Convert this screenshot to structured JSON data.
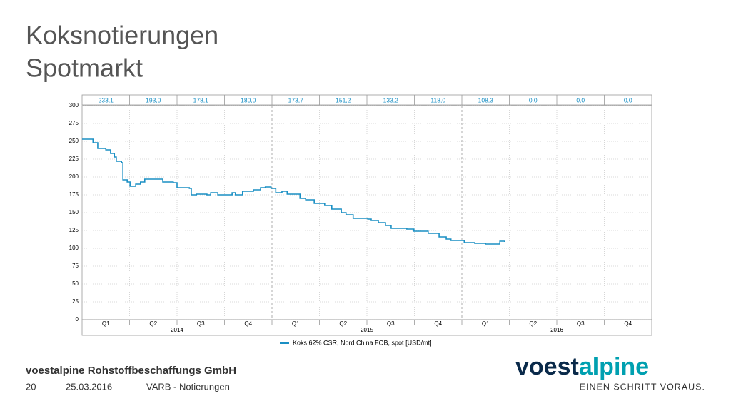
{
  "title_lines": [
    "Koksnotierungen",
    "Spotmarkt"
  ],
  "chart_data": {
    "type": "line",
    "quarter_averages": {
      "values": [
        233.1,
        193.0,
        178.1,
        180.0,
        173.7,
        151.2,
        133.2,
        118.0,
        108.3,
        0.0,
        0.0,
        0.0
      ],
      "value_labels": [
        "233,1",
        "193,0",
        "178,1",
        "180,0",
        "173,7",
        "151,2",
        "133,2",
        "118,0",
        "108,3",
        "0,0",
        "0,0",
        "0,0"
      ]
    },
    "quarters": [
      "Q1",
      "Q2",
      "Q3",
      "Q4",
      "Q1",
      "Q2",
      "Q3",
      "Q4",
      "Q1",
      "Q2",
      "Q3",
      "Q4"
    ],
    "years": [
      "2014",
      "2015",
      "2016"
    ],
    "xlim": [
      0,
      12
    ],
    "ylim": [
      0,
      300
    ],
    "yticks": [
      0,
      25,
      50,
      75,
      100,
      125,
      150,
      175,
      200,
      225,
      250,
      275,
      300
    ],
    "grid": true,
    "series": [
      {
        "name": "Koks 62% CSR, Nord China FOB, spot [USD/mt]",
        "color": "#1a8fc4",
        "x": [
          0,
          0.15,
          0.23,
          0.33,
          0.5,
          0.6,
          0.68,
          0.72,
          0.83,
          0.86,
          0.95,
          1.01,
          1.13,
          1.23,
          1.32,
          1.61,
          1.7,
          1.92,
          2.0,
          2.26,
          2.3,
          2.41,
          2.63,
          2.71,
          2.86,
          3.08,
          3.16,
          3.23,
          3.38,
          3.61,
          3.76,
          3.86,
          3.98,
          4.08,
          4.21,
          4.32,
          4.51,
          4.59,
          4.71,
          4.89,
          5.11,
          5.26,
          5.46,
          5.56,
          5.71,
          6.02,
          6.09,
          6.24,
          6.39,
          6.51,
          6.84,
          6.99,
          7.29,
          7.52,
          7.67,
          7.77,
          7.97,
          8.05,
          8.27,
          8.5,
          8.68,
          8.8,
          8.9
        ],
        "values": [
          253,
          253,
          248,
          240,
          238,
          233,
          228,
          222,
          220,
          196,
          193,
          187,
          190,
          193,
          197,
          197,
          193,
          192,
          185,
          184,
          175,
          176,
          175,
          178,
          175,
          175,
          178,
          175,
          180,
          182,
          185,
          186,
          184,
          178,
          180,
          176,
          176,
          170,
          168,
          163,
          160,
          155,
          150,
          147,
          142,
          141,
          139,
          136,
          132,
          128,
          127,
          124,
          121,
          116,
          113,
          111,
          111,
          108,
          107,
          106,
          106,
          110,
          109
        ]
      }
    ]
  },
  "footer": {
    "company": "voestalpine Rohstoffbeschaffungs GmbH",
    "page": "20",
    "date": "25.03.2016",
    "section": "VARB - Notierungen"
  },
  "logo": {
    "part1": "voest",
    "part2": "alpine",
    "tagline": "EINEN SCHRITT VORAUS."
  }
}
